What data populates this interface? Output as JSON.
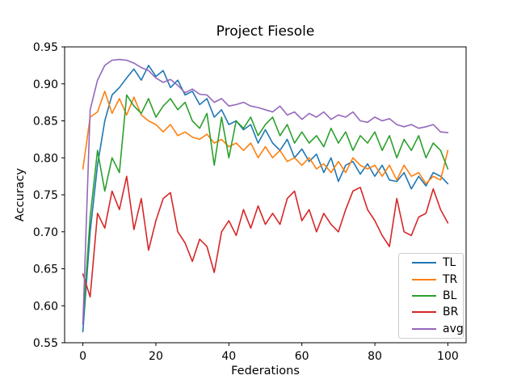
{
  "chart_data": {
    "type": "line",
    "title": "Project Fiesole",
    "xlabel": "Federations",
    "ylabel": "Accuracy",
    "xlim": [
      -5,
      105
    ],
    "ylim": [
      0.55,
      0.95
    ],
    "xticks": [
      0,
      20,
      40,
      60,
      80,
      100
    ],
    "xtick_labels": [
      "0",
      "20",
      "40",
      "60",
      "80",
      "100"
    ],
    "yticks": [
      0.55,
      0.6,
      0.65,
      0.7,
      0.75,
      0.8,
      0.85,
      0.9,
      0.95
    ],
    "ytick_labels": [
      "0.55",
      "0.60",
      "0.65",
      "0.70",
      "0.75",
      "0.80",
      "0.85",
      "0.90",
      "0.95"
    ],
    "grid": false,
    "legend_position": "lower right",
    "axes_color": "#000000",
    "background_color": "#ffffff",
    "x": [
      0,
      2,
      4,
      6,
      8,
      10,
      12,
      14,
      16,
      18,
      20,
      22,
      24,
      26,
      28,
      30,
      32,
      34,
      36,
      38,
      40,
      42,
      44,
      46,
      48,
      50,
      52,
      54,
      56,
      58,
      60,
      62,
      64,
      66,
      68,
      70,
      72,
      74,
      76,
      78,
      80,
      82,
      84,
      86,
      88,
      90,
      92,
      94,
      96,
      98,
      100
    ],
    "series": [
      {
        "name": "TL",
        "color": "#1f77b4",
        "values": [
          0.565,
          0.7,
          0.79,
          0.85,
          0.885,
          0.895,
          0.908,
          0.92,
          0.905,
          0.925,
          0.91,
          0.918,
          0.895,
          0.905,
          0.885,
          0.89,
          0.872,
          0.88,
          0.855,
          0.865,
          0.845,
          0.85,
          0.838,
          0.845,
          0.82,
          0.838,
          0.82,
          0.81,
          0.825,
          0.8,
          0.812,
          0.795,
          0.805,
          0.78,
          0.8,
          0.768,
          0.79,
          0.795,
          0.778,
          0.792,
          0.775,
          0.79,
          0.77,
          0.768,
          0.78,
          0.758,
          0.775,
          0.762,
          0.78,
          0.775,
          0.765
        ]
      },
      {
        "name": "TR",
        "color": "#ff7f0e",
        "values": [
          0.785,
          0.855,
          0.862,
          0.89,
          0.86,
          0.88,
          0.858,
          0.882,
          0.858,
          0.85,
          0.845,
          0.835,
          0.845,
          0.83,
          0.835,
          0.828,
          0.825,
          0.832,
          0.82,
          0.825,
          0.815,
          0.82,
          0.81,
          0.82,
          0.8,
          0.815,
          0.8,
          0.81,
          0.795,
          0.8,
          0.79,
          0.8,
          0.785,
          0.792,
          0.78,
          0.795,
          0.78,
          0.8,
          0.79,
          0.785,
          0.79,
          0.775,
          0.79,
          0.77,
          0.79,
          0.775,
          0.78,
          0.765,
          0.775,
          0.77,
          0.81
        ]
      },
      {
        "name": "BL",
        "color": "#2ca02c",
        "values": [
          0.575,
          0.72,
          0.81,
          0.755,
          0.8,
          0.78,
          0.885,
          0.87,
          0.86,
          0.88,
          0.855,
          0.87,
          0.88,
          0.865,
          0.875,
          0.85,
          0.84,
          0.86,
          0.79,
          0.855,
          0.8,
          0.85,
          0.84,
          0.855,
          0.83,
          0.845,
          0.855,
          0.83,
          0.845,
          0.82,
          0.835,
          0.82,
          0.83,
          0.815,
          0.84,
          0.82,
          0.835,
          0.81,
          0.83,
          0.82,
          0.835,
          0.81,
          0.83,
          0.8,
          0.825,
          0.81,
          0.83,
          0.8,
          0.82,
          0.81,
          0.785
        ]
      },
      {
        "name": "BR",
        "color": "#d62728",
        "values": [
          0.643,
          0.612,
          0.725,
          0.705,
          0.755,
          0.73,
          0.775,
          0.703,
          0.745,
          0.675,
          0.715,
          0.745,
          0.753,
          0.7,
          0.685,
          0.66,
          0.69,
          0.68,
          0.645,
          0.7,
          0.715,
          0.695,
          0.73,
          0.705,
          0.735,
          0.71,
          0.725,
          0.71,
          0.745,
          0.755,
          0.715,
          0.73,
          0.7,
          0.725,
          0.71,
          0.7,
          0.73,
          0.755,
          0.76,
          0.73,
          0.715,
          0.695,
          0.68,
          0.745,
          0.7,
          0.695,
          0.72,
          0.725,
          0.758,
          0.73,
          0.712
        ]
      },
      {
        "name": "avg",
        "color": "#9467bd",
        "values": [
          0.575,
          0.865,
          0.905,
          0.925,
          0.932,
          0.933,
          0.932,
          0.928,
          0.922,
          0.918,
          0.908,
          0.902,
          0.906,
          0.898,
          0.888,
          0.893,
          0.886,
          0.885,
          0.875,
          0.88,
          0.87,
          0.872,
          0.875,
          0.87,
          0.868,
          0.865,
          0.862,
          0.87,
          0.858,
          0.862,
          0.852,
          0.86,
          0.855,
          0.862,
          0.852,
          0.858,
          0.855,
          0.862,
          0.85,
          0.848,
          0.855,
          0.85,
          0.853,
          0.845,
          0.842,
          0.845,
          0.84,
          0.842,
          0.845,
          0.835,
          0.834
        ]
      }
    ]
  }
}
